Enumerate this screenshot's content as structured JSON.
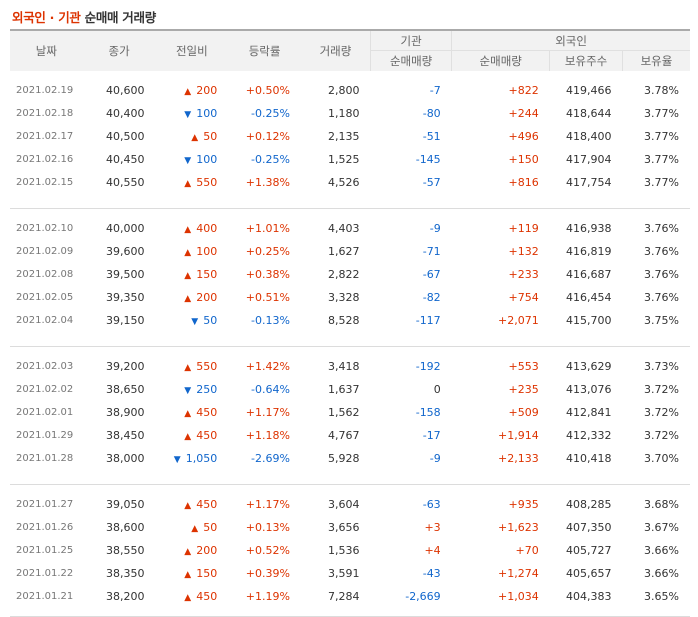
{
  "title": {
    "part1": "외국인",
    "sep": "·",
    "part2": "기관",
    "rest": "순매매 거래량"
  },
  "headers": {
    "date": "날짜",
    "close": "종가",
    "change": "전일비",
    "rate": "등락률",
    "volume": "거래량",
    "inst": "기관",
    "foreign": "외국인",
    "inst_net": "순매매량",
    "for_net": "순매매량",
    "holdings": "보유주수",
    "ratio": "보유율"
  },
  "rows": [
    {
      "date": "2021.02.19",
      "close": "40,600",
      "dir": "up",
      "chg": "200",
      "rate": "+0.50%",
      "vol": "2,800",
      "inst": "-7",
      "inst_dir": "dn",
      "for": "+822",
      "for_dir": "up",
      "hold": "419,466",
      "ratio": "3.78%"
    },
    {
      "date": "2021.02.18",
      "close": "40,400",
      "dir": "dn",
      "chg": "100",
      "rate": "-0.25%",
      "vol": "1,180",
      "inst": "-80",
      "inst_dir": "dn",
      "for": "+244",
      "for_dir": "up",
      "hold": "418,644",
      "ratio": "3.77%"
    },
    {
      "date": "2021.02.17",
      "close": "40,500",
      "dir": "up",
      "chg": "50",
      "rate": "+0.12%",
      "vol": "2,135",
      "inst": "-51",
      "inst_dir": "dn",
      "for": "+496",
      "for_dir": "up",
      "hold": "418,400",
      "ratio": "3.77%"
    },
    {
      "date": "2021.02.16",
      "close": "40,450",
      "dir": "dn",
      "chg": "100",
      "rate": "-0.25%",
      "vol": "1,525",
      "inst": "-145",
      "inst_dir": "dn",
      "for": "+150",
      "for_dir": "up",
      "hold": "417,904",
      "ratio": "3.77%"
    },
    {
      "date": "2021.02.15",
      "close": "40,550",
      "dir": "up",
      "chg": "550",
      "rate": "+1.38%",
      "vol": "4,526",
      "inst": "-57",
      "inst_dir": "dn",
      "for": "+816",
      "for_dir": "up",
      "hold": "417,754",
      "ratio": "3.77%"
    },
    {
      "date": "2021.02.10",
      "close": "40,000",
      "dir": "up",
      "chg": "400",
      "rate": "+1.01%",
      "vol": "4,403",
      "inst": "-9",
      "inst_dir": "dn",
      "for": "+119",
      "for_dir": "up",
      "hold": "416,938",
      "ratio": "3.76%"
    },
    {
      "date": "2021.02.09",
      "close": "39,600",
      "dir": "up",
      "chg": "100",
      "rate": "+0.25%",
      "vol": "1,627",
      "inst": "-71",
      "inst_dir": "dn",
      "for": "+132",
      "for_dir": "up",
      "hold": "416,819",
      "ratio": "3.76%"
    },
    {
      "date": "2021.02.08",
      "close": "39,500",
      "dir": "up",
      "chg": "150",
      "rate": "+0.38%",
      "vol": "2,822",
      "inst": "-67",
      "inst_dir": "dn",
      "for": "+233",
      "for_dir": "up",
      "hold": "416,687",
      "ratio": "3.76%"
    },
    {
      "date": "2021.02.05",
      "close": "39,350",
      "dir": "up",
      "chg": "200",
      "rate": "+0.51%",
      "vol": "3,328",
      "inst": "-82",
      "inst_dir": "dn",
      "for": "+754",
      "for_dir": "up",
      "hold": "416,454",
      "ratio": "3.76%"
    },
    {
      "date": "2021.02.04",
      "close": "39,150",
      "dir": "dn",
      "chg": "50",
      "rate": "-0.13%",
      "vol": "8,528",
      "inst": "-117",
      "inst_dir": "dn",
      "for": "+2,071",
      "for_dir": "up",
      "hold": "415,700",
      "ratio": "3.75%"
    },
    {
      "date": "2021.02.03",
      "close": "39,200",
      "dir": "up",
      "chg": "550",
      "rate": "+1.42%",
      "vol": "3,418",
      "inst": "-192",
      "inst_dir": "dn",
      "for": "+553",
      "for_dir": "up",
      "hold": "413,629",
      "ratio": "3.73%"
    },
    {
      "date": "2021.02.02",
      "close": "38,650",
      "dir": "dn",
      "chg": "250",
      "rate": "-0.64%",
      "vol": "1,637",
      "inst": "0",
      "inst_dir": "zero",
      "for": "+235",
      "for_dir": "up",
      "hold": "413,076",
      "ratio": "3.72%"
    },
    {
      "date": "2021.02.01",
      "close": "38,900",
      "dir": "up",
      "chg": "450",
      "rate": "+1.17%",
      "vol": "1,562",
      "inst": "-158",
      "inst_dir": "dn",
      "for": "+509",
      "for_dir": "up",
      "hold": "412,841",
      "ratio": "3.72%"
    },
    {
      "date": "2021.01.29",
      "close": "38,450",
      "dir": "up",
      "chg": "450",
      "rate": "+1.18%",
      "vol": "4,767",
      "inst": "-17",
      "inst_dir": "dn",
      "for": "+1,914",
      "for_dir": "up",
      "hold": "412,332",
      "ratio": "3.72%"
    },
    {
      "date": "2021.01.28",
      "close": "38,000",
      "dir": "dn",
      "chg": "1,050",
      "rate": "-2.69%",
      "vol": "5,928",
      "inst": "-9",
      "inst_dir": "dn",
      "for": "+2,133",
      "for_dir": "up",
      "hold": "410,418",
      "ratio": "3.70%"
    },
    {
      "date": "2021.01.27",
      "close": "39,050",
      "dir": "up",
      "chg": "450",
      "rate": "+1.17%",
      "vol": "3,604",
      "inst": "-63",
      "inst_dir": "dn",
      "for": "+935",
      "for_dir": "up",
      "hold": "408,285",
      "ratio": "3.68%"
    },
    {
      "date": "2021.01.26",
      "close": "38,600",
      "dir": "up",
      "chg": "50",
      "rate": "+0.13%",
      "vol": "3,656",
      "inst": "+3",
      "inst_dir": "up",
      "for": "+1,623",
      "for_dir": "up",
      "hold": "407,350",
      "ratio": "3.67%"
    },
    {
      "date": "2021.01.25",
      "close": "38,550",
      "dir": "up",
      "chg": "200",
      "rate": "+0.52%",
      "vol": "1,536",
      "inst": "+4",
      "inst_dir": "up",
      "for": "+70",
      "for_dir": "up",
      "hold": "405,727",
      "ratio": "3.66%"
    },
    {
      "date": "2021.01.22",
      "close": "38,350",
      "dir": "up",
      "chg": "150",
      "rate": "+0.39%",
      "vol": "3,591",
      "inst": "-43",
      "inst_dir": "dn",
      "for": "+1,274",
      "for_dir": "up",
      "hold": "405,657",
      "ratio": "3.66%"
    },
    {
      "date": "2021.01.21",
      "close": "38,200",
      "dir": "up",
      "chg": "450",
      "rate": "+1.19%",
      "vol": "7,284",
      "inst": "-2,669",
      "inst_dir": "dn",
      "for": "+1,034",
      "for_dir": "up",
      "hold": "404,383",
      "ratio": "3.65%"
    }
  ],
  "colors": {
    "up": "#dd3300",
    "down": "#1166cc",
    "header_bg": "#f2f2f2"
  },
  "icons": {
    "up": "triangle-up-icon",
    "down": "triangle-down-icon"
  }
}
